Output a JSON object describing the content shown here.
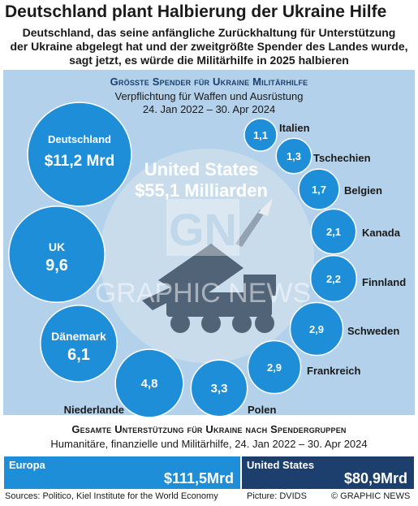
{
  "header": {
    "title": "Deutschland plant Halbierung der Ukraine Hilfe",
    "subtitle_line1": "Deutschland, das seine anfängliche Zurückhaltung für Unterstützung",
    "subtitle_line2": "der Ukraine abgelegt hat und der zweitgrößte Spender des Landes wurde,",
    "subtitle_line3": "sagt jetzt, es würde die Militärhilfe in 2025 halbieren"
  },
  "chart_data": {
    "type": "bubble",
    "title": "Größte Spender für Ukraine Militärhilfe",
    "subtitle_line1": "Verpflichtung für Waffen und Ausrüstung",
    "subtitle_line2": "24. Jan 2022 – 30. Apr 2024",
    "center": {
      "label_line1": "United States",
      "label_line2": "$55,1 Milliarden",
      "value": 55.1
    },
    "donors": [
      {
        "name": "Deutschland",
        "label": "$11,2 Mrd",
        "value": 11.2
      },
      {
        "name": "UK",
        "label": "9,6",
        "value": 9.6
      },
      {
        "name": "Dänemark",
        "label": "6,1",
        "value": 6.1
      },
      {
        "name": "Niederlande",
        "label": "4,8",
        "value": 4.8
      },
      {
        "name": "Polen",
        "label": "3,3",
        "value": 3.3
      },
      {
        "name": "Frankreich",
        "label": "2,9",
        "value": 2.9
      },
      {
        "name": "Schweden",
        "label": "2,9",
        "value": 2.9
      },
      {
        "name": "Finnland",
        "label": "2,2",
        "value": 2.2
      },
      {
        "name": "Kanada",
        "label": "2,1",
        "value": 2.1
      },
      {
        "name": "Belgien",
        "label": "1,7",
        "value": 1.7
      },
      {
        "name": "Tschechien",
        "label": "1,3",
        "value": 1.3
      },
      {
        "name": "Italien",
        "label": "1,1",
        "value": 1.1
      }
    ]
  },
  "watermark": {
    "logo": "GN",
    "text": "GRAPHIC NEWS"
  },
  "totals": {
    "title": "Gesamte Unterstützung für Ukraine nach Spendergruppen",
    "subtitle": "Humanitäre, finanzielle  und Militärhilfe, 24. Jan 2022 – 30. Apr 2024",
    "groups": [
      {
        "name": "Europa",
        "label": "$111,5Mrd",
        "value": 111.5,
        "color": "#1f8ed8"
      },
      {
        "name": "United States",
        "label": "$80,9Mrd",
        "value": 80.9,
        "color": "#1c3f6e"
      }
    ]
  },
  "footer": {
    "sources": "Sources: Politico, Kiel Institute for the World Economy",
    "picture": "Picture: DVIDS",
    "credit": "© GRAPHIC NEWS"
  },
  "colors": {
    "bubble": "#1f8ed8",
    "panel": "#b3d1ea",
    "center": "#c9dcec",
    "dark_blue": "#1c3f6e"
  }
}
